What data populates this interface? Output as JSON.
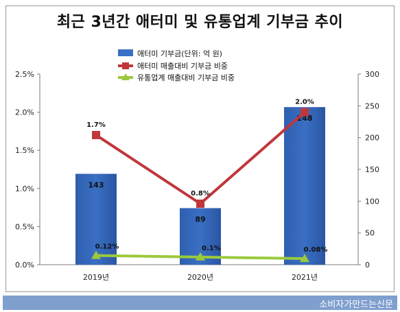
{
  "title": "최근 3년간 애터미 및 유통업계 기부금 추이",
  "footer": "소비자가만드는신문",
  "colors": {
    "bar": "#3a6fc3",
    "line_red": "#c0373b",
    "line_green": "#9bc93c",
    "footer_bg": "#7f9fcf"
  },
  "chart_data": {
    "type": "bar",
    "categories": [
      "2019년",
      "2020년",
      "2021년"
    ],
    "series": [
      {
        "name": "애터미 기부금(단위: 억 원)",
        "type": "bar",
        "axis": "right",
        "values": [
          143,
          89,
          248
        ],
        "labels": [
          "143",
          "89",
          "248"
        ]
      },
      {
        "name": "애터미 매출대비 기부금 비중",
        "type": "line",
        "axis": "left",
        "values": [
          1.7,
          0.8,
          2.0
        ],
        "labels": [
          "1.7%",
          "0.8%",
          "2.0%"
        ]
      },
      {
        "name": "유통업계 매출대비 기부금 비중",
        "type": "line",
        "axis": "left",
        "values": [
          0.12,
          0.1,
          0.08
        ],
        "labels": [
          "0.12%",
          "0.1%",
          "0.08%"
        ]
      }
    ],
    "y_left": {
      "range": [
        0,
        2.5
      ],
      "ticks": [
        "0.0%",
        "0.5%",
        "1.0%",
        "1.5%",
        "2.0%",
        "2.5%"
      ],
      "tick_values": [
        0,
        0.5,
        1.0,
        1.5,
        2.0,
        2.5
      ]
    },
    "y_right": {
      "range": [
        0,
        300
      ],
      "ticks": [
        "0",
        "50",
        "100",
        "150",
        "200",
        "250",
        "300"
      ],
      "tick_values": [
        0,
        50,
        100,
        150,
        200,
        250,
        300
      ]
    },
    "legend_position": "top",
    "grid": false
  }
}
